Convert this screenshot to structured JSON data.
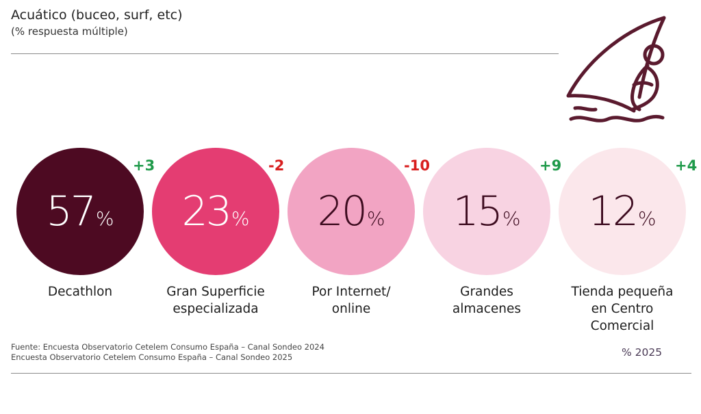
{
  "header": {
    "title": "Acuático (buceo, surf, etc)",
    "subtitle": "(% respuesta múltiple)"
  },
  "icon": {
    "name": "windsurf-icon",
    "color": "#5a1a2e"
  },
  "chart_data": {
    "type": "bubble-stat",
    "title": "Acuático (buceo, surf, etc)",
    "unit": "%",
    "categories": [
      "Decathlon",
      "Gran Superficie especializada",
      "Por Internet/ online",
      "Grandes almacenes",
      "Tienda pequeña en Centro Comercial"
    ],
    "values": [
      57,
      23,
      20,
      15,
      12
    ],
    "changes": [
      "+3",
      "-2",
      "-10",
      "+9",
      "+4"
    ]
  },
  "items": [
    {
      "value": "57",
      "unit": "%",
      "delta": "+3",
      "label_lines": [
        "Decathlon"
      ],
      "bg": "#4d0a22",
      "fg": "#ffffff",
      "delta_color": "#1f9a4a"
    },
    {
      "value": "23",
      "unit": "%",
      "delta": "-2",
      "label_lines": [
        "Gran Superficie",
        "especializada"
      ],
      "bg": "#e43d72",
      "fg": "#ffffff",
      "delta_color": "#d81e1e"
    },
    {
      "value": "20",
      "unit": "%",
      "delta": "-10",
      "label_lines": [
        "Por Internet/",
        "online"
      ],
      "bg": "#f2a4c3",
      "fg": "#3d0b1f",
      "delta_color": "#d81e1e"
    },
    {
      "value": "15",
      "unit": "%",
      "delta": "+9",
      "label_lines": [
        "Grandes",
        "almacenes"
      ],
      "bg": "#f8d3e2",
      "fg": "#3d0b1f",
      "delta_color": "#1f9a4a"
    },
    {
      "value": "12",
      "unit": "%",
      "delta": "+4",
      "label_lines": [
        "Tienda pequeña",
        "en Centro",
        "Comercial"
      ],
      "bg": "#fbe7eb",
      "fg": "#3d0b1f",
      "delta_color": "#1f9a4a"
    }
  ],
  "footer": {
    "source_line1": "Fuente: Encuesta Observatorio Cetelem Consumo España – Canal Sondeo 2024",
    "source_line2": "Encuesta Observatorio Cetelem Consumo España – Canal Sondeo 2025",
    "legend": "% 2025"
  }
}
